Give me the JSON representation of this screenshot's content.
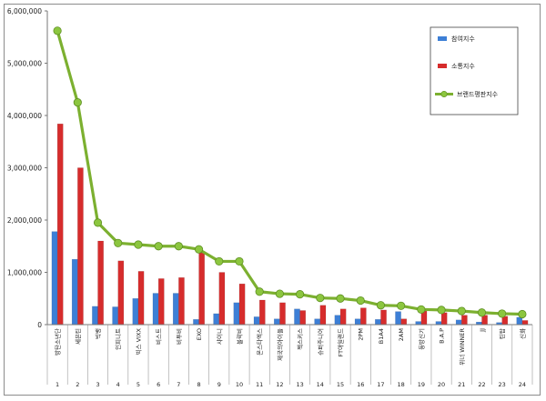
{
  "chart_data": {
    "type": "bar",
    "ylim": [
      0,
      6000000
    ],
    "yticks": [
      "0",
      "1,000,000",
      "2,000,000",
      "3,000,000",
      "4,000,000",
      "5,000,000",
      "6,000,000"
    ],
    "ytick_values": [
      0,
      1000000,
      2000000,
      3000000,
      4000000,
      5000000,
      6000000
    ],
    "categories": [
      "방탄소년단",
      "세븐틴",
      "빅뱅",
      "인피니트",
      "빅스 VIXX",
      "비스트",
      "비투비",
      "EXO",
      "샤이니",
      "블락비",
      "몬스타엑스",
      "제국의아이들",
      "젝스키스",
      "슈퍼주니어",
      "FT아일랜드",
      "2PM",
      "B1A4",
      "2AM",
      "동방신기",
      "B.A.P",
      "위너 WINNER",
      "JJ",
      "틴탑",
      "신화"
    ],
    "ranks": [
      "1",
      "2",
      "3",
      "4",
      "5",
      "6",
      "7",
      "8",
      "9",
      "10",
      "11",
      "12",
      "13",
      "14",
      "15",
      "16",
      "17",
      "18",
      "19",
      "20",
      "21",
      "22",
      "23",
      "24"
    ],
    "series": [
      {
        "name": "참여지수",
        "kind": "bar",
        "color": "#3d7fd6",
        "values": [
          1780000,
          1250000,
          350000,
          340000,
          500000,
          600000,
          600000,
          100000,
          210000,
          420000,
          150000,
          110000,
          300000,
          110000,
          180000,
          110000,
          100000,
          250000,
          60000,
          60000,
          90000,
          50000,
          40000,
          140000
        ]
      },
      {
        "name": "소통지수",
        "kind": "bar",
        "color": "#d62c2c",
        "values": [
          3840000,
          3000000,
          1600000,
          1220000,
          1020000,
          880000,
          900000,
          1380000,
          1000000,
          780000,
          470000,
          420000,
          270000,
          370000,
          300000,
          320000,
          280000,
          110000,
          260000,
          230000,
          180000,
          180000,
          160000,
          80000
        ]
      },
      {
        "name": "브랜드평판지수",
        "kind": "line",
        "color": "#7cb030",
        "values": [
          5620000,
          4250000,
          1950000,
          1560000,
          1530000,
          1500000,
          1500000,
          1440000,
          1210000,
          1210000,
          630000,
          590000,
          580000,
          510000,
          500000,
          460000,
          370000,
          360000,
          290000,
          280000,
          260000,
          230000,
          210000,
          200000
        ]
      }
    ]
  }
}
